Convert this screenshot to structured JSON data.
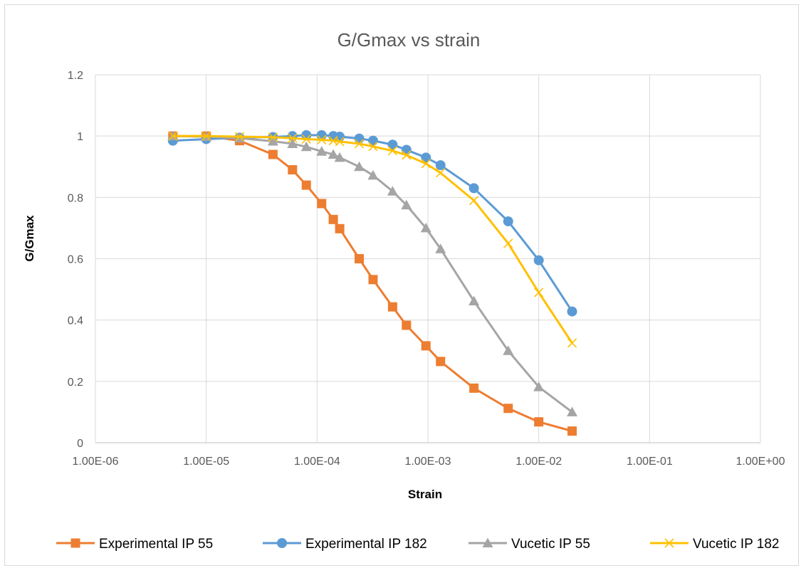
{
  "chart_data": {
    "type": "line",
    "title": "G/Gmax vs strain",
    "xlabel": "Strain",
    "ylabel": "G/Gmax",
    "x_scale": "log",
    "xlim": [
      1e-06,
      1
    ],
    "ylim": [
      0,
      1.2
    ],
    "x_ticks": [
      1e-06,
      1e-05,
      0.0001,
      0.001,
      0.01,
      0.1,
      1
    ],
    "x_tick_labels": [
      "1.00E-06",
      "1.00E-05",
      "1.00E-04",
      "1.00E-03",
      "1.00E-02",
      "1.00E-01",
      "1.00E+00"
    ],
    "y_ticks": [
      0,
      0.2,
      0.4,
      0.6,
      0.8,
      1,
      1.2
    ],
    "y_tick_labels": [
      "0",
      "0.2",
      "0.4",
      "0.6",
      "0.8",
      "1",
      "1.2"
    ],
    "grid": true,
    "legend_position": "bottom",
    "series": [
      {
        "name": "Experimental IP 55",
        "color": "#ED7D31",
        "marker": "square",
        "x": [
          5e-06,
          1e-05,
          2e-05,
          4e-05,
          6e-05,
          8e-05,
          0.00011,
          0.00014,
          0.00016,
          0.00024,
          0.00032,
          0.00048,
          0.00064,
          0.00096,
          0.0013,
          0.0026,
          0.0053,
          0.01,
          0.02
        ],
        "y": [
          1.0,
          1.0,
          0.985,
          0.94,
          0.89,
          0.84,
          0.78,
          0.728,
          0.698,
          0.6,
          0.532,
          0.443,
          0.383,
          0.316,
          0.265,
          0.178,
          0.112,
          0.068,
          0.038
        ]
      },
      {
        "name": "Experimental IP 182",
        "color": "#5B9BD5",
        "marker": "circle",
        "x": [
          5e-06,
          1e-05,
          2e-05,
          4e-05,
          6e-05,
          8e-05,
          0.00011,
          0.00014,
          0.00016,
          0.00024,
          0.00032,
          0.00048,
          0.00064,
          0.00096,
          0.0013,
          0.0026,
          0.0053,
          0.01,
          0.02
        ],
        "y": [
          0.985,
          0.99,
          0.995,
          0.997,
          1.0,
          1.003,
          1.003,
          1.0,
          0.998,
          0.992,
          0.985,
          0.972,
          0.955,
          0.93,
          0.905,
          0.83,
          0.722,
          0.595,
          0.428
        ]
      },
      {
        "name": "Vucetic IP 55",
        "color": "#A5A5A5",
        "marker": "triangle",
        "x": [
          5e-06,
          1e-05,
          2e-05,
          4e-05,
          6e-05,
          8e-05,
          0.00011,
          0.00014,
          0.00016,
          0.00024,
          0.00032,
          0.00048,
          0.00064,
          0.00096,
          0.0013,
          0.0026,
          0.0053,
          0.01,
          0.02
        ],
        "y": [
          1.0,
          0.998,
          0.993,
          0.983,
          0.975,
          0.965,
          0.95,
          0.94,
          0.93,
          0.9,
          0.872,
          0.82,
          0.775,
          0.7,
          0.632,
          0.462,
          0.3,
          0.182,
          0.1
        ]
      },
      {
        "name": "Vucetic IP 182",
        "color": "#FFC000",
        "marker": "x",
        "x": [
          5e-06,
          1e-05,
          2e-05,
          4e-05,
          6e-05,
          8e-05,
          0.00011,
          0.00014,
          0.00016,
          0.00024,
          0.00032,
          0.00048,
          0.00064,
          0.00096,
          0.0013,
          0.0026,
          0.0053,
          0.01,
          0.02
        ],
        "y": [
          1.0,
          1.0,
          0.998,
          0.996,
          0.993,
          0.99,
          0.988,
          0.985,
          0.982,
          0.975,
          0.966,
          0.952,
          0.938,
          0.91,
          0.88,
          0.79,
          0.65,
          0.49,
          0.325
        ]
      }
    ]
  }
}
